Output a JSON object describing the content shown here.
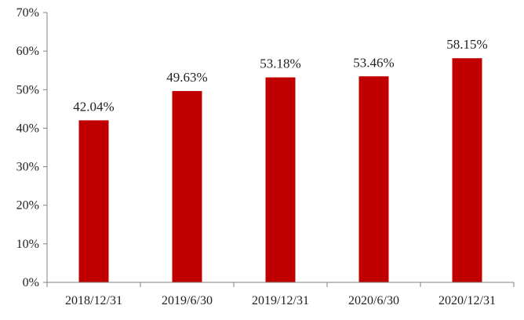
{
  "chart_data": {
    "type": "bar",
    "categories": [
      "2018/12/31",
      "2019/6/30",
      "2019/12/31",
      "2020/6/30",
      "2020/12/31"
    ],
    "values": [
      42.04,
      49.63,
      53.18,
      53.46,
      58.15
    ],
    "data_labels": [
      "42.04%",
      "49.63%",
      "53.18%",
      "53.46%",
      "58.15%"
    ],
    "title": "",
    "xlabel": "",
    "ylabel": "",
    "ylim": [
      0,
      70
    ],
    "yticks": [
      0,
      10,
      20,
      30,
      40,
      50,
      60,
      70
    ],
    "ytick_labels": [
      "0%",
      "10%",
      "20%",
      "30%",
      "40%",
      "50%",
      "60%",
      "70%"
    ],
    "grid": false,
    "bar_color": "#c00000"
  }
}
